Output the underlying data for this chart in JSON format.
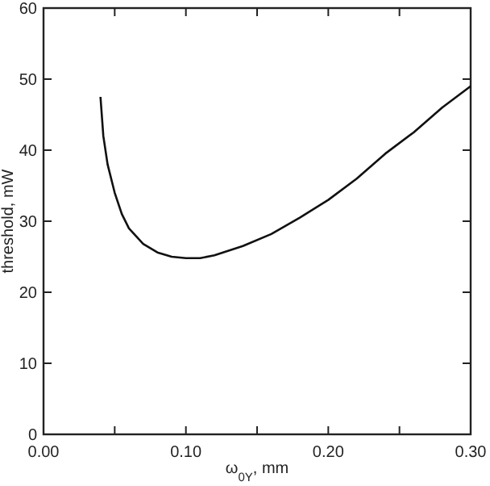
{
  "chart_data": {
    "type": "line",
    "xlabel": "ω$_{0Y}$, mm",
    "ylabel": "threshold, mW",
    "xlim": [
      0,
      0.3
    ],
    "ylim": [
      0,
      60
    ],
    "xticks": [
      {
        "value": 0,
        "label": "0.00"
      },
      {
        "value": 0.05,
        "label": null
      },
      {
        "value": 0.1,
        "label": "0.10"
      },
      {
        "value": 0.15,
        "label": null
      },
      {
        "value": 0.2,
        "label": "0.20"
      },
      {
        "value": 0.25,
        "label": null
      },
      {
        "value": 0.3,
        "label": "0.30"
      }
    ],
    "yticks": [
      0,
      10,
      20,
      30,
      40,
      50,
      60
    ],
    "grid": false,
    "marker": "none",
    "line_style": "solid",
    "series": [
      {
        "color": "#111111",
        "x": [
          0.04,
          0.042,
          0.045,
          0.05,
          0.055,
          0.06,
          0.07,
          0.08,
          0.09,
          0.1,
          0.11,
          0.12,
          0.14,
          0.16,
          0.18,
          0.2,
          0.22,
          0.24,
          0.26,
          0.28,
          0.3
        ],
        "values": [
          47.5,
          42,
          38,
          34,
          31,
          29,
          26.8,
          25.6,
          25,
          24.8,
          24.8,
          25.2,
          26.5,
          28.2,
          30.5,
          33,
          36,
          39.5,
          42.5,
          46,
          49
        ]
      }
    ]
  }
}
